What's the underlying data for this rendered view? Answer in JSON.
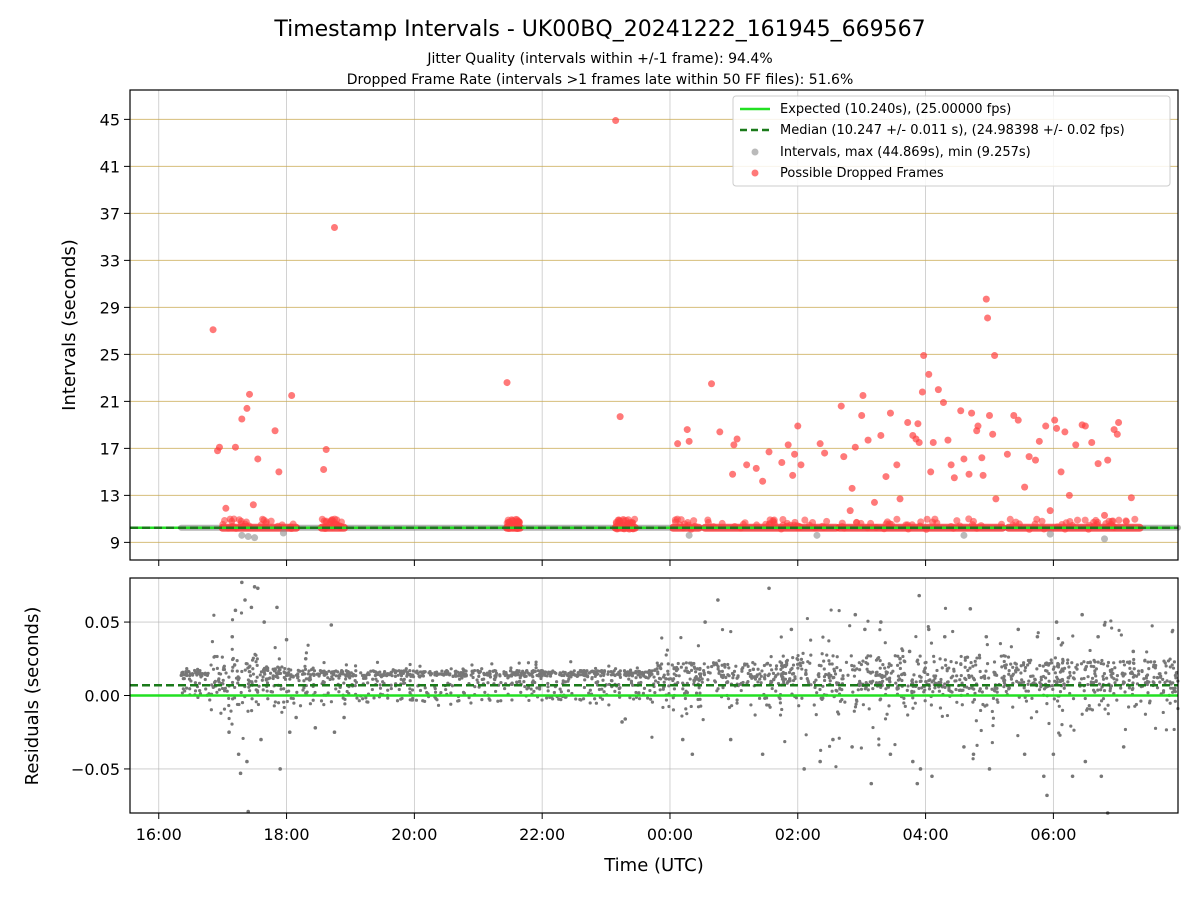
{
  "chart_data": [
    {
      "type": "scatter",
      "title": "Timestamp Intervals - UK00BQ_20241222_161945_669567",
      "subtitle_lines": [
        "Jitter Quality (intervals within +/-1 frame): 94.4%",
        "Dropped Frame Rate (intervals >1 frames late within 50 FF files): 51.6%"
      ],
      "xlabel": "",
      "ylabel": "Intervals (seconds)",
      "x_unit": "hours since 00:00 UTC (2024-12-23)",
      "xlim": [
        -8.45,
        7.95
      ],
      "ylim": [
        7.5,
        47.5
      ],
      "yticks": [
        9,
        13,
        17,
        21,
        25,
        29,
        33,
        37,
        41,
        45
      ],
      "ytick_labels": [
        "9",
        "13",
        "17",
        "21",
        "25",
        "29",
        "33",
        "37",
        "41",
        "45"
      ],
      "grid": true,
      "legend_position": "top-right",
      "legend": [
        {
          "label": "Expected (10.240s), (25.00000 fps)",
          "kind": "line",
          "color": "#22e022",
          "dash": "solid"
        },
        {
          "label": "Median (10.247 +/- 0.011 s), (24.98398 +/- 0.02 fps)",
          "kind": "line",
          "color": "#1a7a1a",
          "dash": "dashed"
        },
        {
          "label": "Intervals, max (44.869s), min (9.257s)",
          "kind": "point",
          "color": "#8c8c8c"
        },
        {
          "label": "Possible Dropped Frames",
          "kind": "point",
          "color": "#ff4040"
        }
      ],
      "expected_interval": 10.24,
      "median_interval": 10.247,
      "baseline_segments": [
        {
          "start": -7.65,
          "end": 7.95,
          "value": 10.24
        }
      ],
      "dense_dropped_segments": [
        [
          -7.0,
          -5.85
        ],
        [
          -5.45,
          -5.1
        ],
        [
          -2.55,
          -2.35
        ],
        [
          -0.85,
          -0.55
        ],
        [
          0.05,
          0.45
        ],
        [
          0.55,
          2.6
        ],
        [
          2.65,
          5.2
        ],
        [
          5.3,
          7.35
        ]
      ],
      "series": [
        {
          "name": "Possible Dropped Frames",
          "color": "#ff4040",
          "points": [
            [
              -7.15,
              27.1
            ],
            [
              -7.08,
              16.8
            ],
            [
              -7.05,
              17.1
            ],
            [
              -6.95,
              11.9
            ],
            [
              -6.8,
              17.1
            ],
            [
              -6.7,
              19.5
            ],
            [
              -6.62,
              20.4
            ],
            [
              -6.58,
              21.6
            ],
            [
              -6.52,
              12.2
            ],
            [
              -6.45,
              16.1
            ],
            [
              -6.18,
              18.5
            ],
            [
              -6.12,
              15.0
            ],
            [
              -5.92,
              21.5
            ],
            [
              -5.42,
              15.2
            ],
            [
              -5.38,
              16.9
            ],
            [
              -5.25,
              35.8
            ],
            [
              -2.55,
              22.6
            ],
            [
              -0.85,
              44.9
            ],
            [
              -0.78,
              19.7
            ],
            [
              0.12,
              17.4
            ],
            [
              0.27,
              18.6
            ],
            [
              0.3,
              17.6
            ],
            [
              0.65,
              22.5
            ],
            [
              0.78,
              18.4
            ],
            [
              0.98,
              14.8
            ],
            [
              1.0,
              17.3
            ],
            [
              1.05,
              17.8
            ],
            [
              1.2,
              15.6
            ],
            [
              1.35,
              15.3
            ],
            [
              1.45,
              14.2
            ],
            [
              1.55,
              16.7
            ],
            [
              1.75,
              15.8
            ],
            [
              1.85,
              17.3
            ],
            [
              1.92,
              14.7
            ],
            [
              1.95,
              16.5
            ],
            [
              2.0,
              18.9
            ],
            [
              2.05,
              15.6
            ],
            [
              2.35,
              17.4
            ],
            [
              2.42,
              16.6
            ],
            [
              2.68,
              20.6
            ],
            [
              2.72,
              16.3
            ],
            [
              2.82,
              11.7
            ],
            [
              2.85,
              13.6
            ],
            [
              2.9,
              17.1
            ],
            [
              3.0,
              19.8
            ],
            [
              3.02,
              21.5
            ],
            [
              3.1,
              17.7
            ],
            [
              3.2,
              12.4
            ],
            [
              3.3,
              18.1
            ],
            [
              3.38,
              14.6
            ],
            [
              3.45,
              20.0
            ],
            [
              3.55,
              15.6
            ],
            [
              3.6,
              12.7
            ],
            [
              3.72,
              19.2
            ],
            [
              3.8,
              18.1
            ],
            [
              3.85,
              17.8
            ],
            [
              3.88,
              19.1
            ],
            [
              3.9,
              17.5
            ],
            [
              3.95,
              21.8
            ],
            [
              3.97,
              24.9
            ],
            [
              4.05,
              23.3
            ],
            [
              4.08,
              15.0
            ],
            [
              4.12,
              17.5
            ],
            [
              4.2,
              22.0
            ],
            [
              4.28,
              20.9
            ],
            [
              4.35,
              17.7
            ],
            [
              4.4,
              15.6
            ],
            [
              4.45,
              14.5
            ],
            [
              4.55,
              20.2
            ],
            [
              4.6,
              16.1
            ],
            [
              4.68,
              14.8
            ],
            [
              4.72,
              20.0
            ],
            [
              4.8,
              18.5
            ],
            [
              4.82,
              18.9
            ],
            [
              4.88,
              16.2
            ],
            [
              4.9,
              14.7
            ],
            [
              4.95,
              29.7
            ],
            [
              4.97,
              28.1
            ],
            [
              5.0,
              19.8
            ],
            [
              5.05,
              18.2
            ],
            [
              5.08,
              24.9
            ],
            [
              5.1,
              12.7
            ],
            [
              5.28,
              16.5
            ],
            [
              5.38,
              19.8
            ],
            [
              5.45,
              19.4
            ],
            [
              5.55,
              13.7
            ],
            [
              5.62,
              16.3
            ],
            [
              5.72,
              16.0
            ],
            [
              5.78,
              17.6
            ],
            [
              5.88,
              18.9
            ],
            [
              5.95,
              11.7
            ],
            [
              6.02,
              19.4
            ],
            [
              6.05,
              18.7
            ],
            [
              6.12,
              15.0
            ],
            [
              6.18,
              18.4
            ],
            [
              6.25,
              13.0
            ],
            [
              6.35,
              17.3
            ],
            [
              6.45,
              19.0
            ],
            [
              6.5,
              18.9
            ],
            [
              6.6,
              17.5
            ],
            [
              6.7,
              15.7
            ],
            [
              6.8,
              11.3
            ],
            [
              6.85,
              16.0
            ],
            [
              6.95,
              18.6
            ],
            [
              7.0,
              18.2
            ],
            [
              7.02,
              19.2
            ],
            [
              7.22,
              12.8
            ]
          ]
        },
        {
          "name": "Intervals, max (44.869s), min (9.257s)",
          "color": "#8c8c8c",
          "points": [
            [
              -6.7,
              9.6
            ],
            [
              -6.6,
              9.5
            ],
            [
              -6.5,
              9.4
            ],
            [
              -6.05,
              9.8
            ],
            [
              0.3,
              9.6
            ],
            [
              2.3,
              9.6
            ],
            [
              4.6,
              9.6
            ],
            [
              5.95,
              9.7
            ],
            [
              6.8,
              9.3
            ]
          ]
        }
      ]
    },
    {
      "type": "scatter",
      "title": "",
      "xlabel": "Time (UTC)",
      "ylabel": "Residuals (seconds)",
      "x_unit": "hours since 00:00 UTC (2024-12-23)",
      "xlim": [
        -8.45,
        7.95
      ],
      "ylim": [
        -0.08,
        0.08
      ],
      "yticks": [
        -0.05,
        0,
        0.05
      ],
      "ytick_labels": [
        "−0.05",
        "0.00",
        "0.05"
      ],
      "xticks": [
        -8,
        -6,
        -4,
        -2,
        0,
        2,
        4,
        6
      ],
      "xtick_labels": [
        "16:00",
        "18:00",
        "20:00",
        "22:00",
        "00:00",
        "02:00",
        "04:00",
        "06:00"
      ],
      "grid": true,
      "expected_residual": 0.0,
      "median_residual": 0.007,
      "band_value": 0.015,
      "noise_regions": [
        {
          "start": -7.65,
          "end": -7.2,
          "spread": 0.006
        },
        {
          "start": -7.2,
          "end": -6.4,
          "spread": 0.05
        },
        {
          "start": -6.4,
          "end": -5.6,
          "spread": 0.02
        },
        {
          "start": -5.6,
          "end": -0.3,
          "spread": 0.008
        },
        {
          "start": -0.3,
          "end": 1.9,
          "spread": 0.03
        },
        {
          "start": 1.9,
          "end": 5.3,
          "spread": 0.05
        },
        {
          "start": 5.3,
          "end": 7.95,
          "spread": 0.04
        }
      ],
      "series": [
        {
          "name": "",
          "color": "#777777",
          "points": [
            [
              -7.35,
              0.015
            ],
            [
              -7.0,
              0.008
            ],
            [
              -6.9,
              -0.025
            ],
            [
              -6.85,
              0.04
            ],
            [
              -6.8,
              0.058
            ],
            [
              -6.75,
              -0.04
            ],
            [
              -6.72,
              -0.053
            ],
            [
              -6.7,
              0.077
            ],
            [
              -6.65,
              0.065
            ],
            [
              -6.62,
              -0.045
            ],
            [
              -6.6,
              -0.079
            ],
            [
              -6.55,
              0.06
            ],
            [
              -6.5,
              0.074
            ],
            [
              -6.45,
              0.073
            ],
            [
              -6.4,
              -0.03
            ],
            [
              -6.35,
              0.05
            ],
            [
              -6.15,
              0.06
            ],
            [
              -6.1,
              -0.05
            ],
            [
              -6.0,
              0.038
            ],
            [
              -5.95,
              -0.025
            ],
            [
              -5.85,
              -0.015
            ],
            [
              -5.7,
              0.025
            ],
            [
              -5.55,
              -0.022
            ],
            [
              -5.3,
              0.048
            ],
            [
              -5.25,
              -0.025
            ],
            [
              -5.1,
              -0.015
            ],
            [
              -0.75,
              -0.018
            ],
            [
              -0.7,
              -0.016
            ],
            [
              0.2,
              -0.03
            ],
            [
              0.35,
              -0.04
            ],
            [
              0.55,
              0.05
            ],
            [
              0.75,
              0.065
            ],
            [
              0.95,
              -0.03
            ],
            [
              1.45,
              -0.04
            ],
            [
              1.55,
              0.073
            ],
            [
              1.9,
              0.045
            ],
            [
              2.1,
              -0.05
            ],
            [
              2.35,
              -0.045
            ],
            [
              2.55,
              -0.03
            ],
            [
              2.85,
              -0.035
            ],
            [
              2.9,
              0.055
            ],
            [
              3.05,
              0.045
            ],
            [
              3.15,
              -0.06
            ],
            [
              3.3,
              0.05
            ],
            [
              3.45,
              -0.04
            ],
            [
              3.6,
              0.025
            ],
            [
              3.75,
              0.03
            ],
            [
              3.8,
              -0.045
            ],
            [
              3.87,
              -0.06
            ],
            [
              3.9,
              0.068
            ],
            [
              3.92,
              -0.05
            ],
            [
              4.05,
              0.045
            ],
            [
              4.1,
              -0.055
            ],
            [
              4.3,
              0.04
            ],
            [
              4.6,
              -0.035
            ],
            [
              4.7,
              0.059
            ],
            [
              4.75,
              -0.04
            ],
            [
              4.95,
              0.04
            ],
            [
              5.0,
              -0.05
            ],
            [
              5.45,
              0.045
            ],
            [
              5.55,
              -0.04
            ],
            [
              5.75,
              0.04
            ],
            [
              5.85,
              -0.055
            ],
            [
              5.9,
              -0.068
            ],
            [
              6.0,
              -0.04
            ],
            [
              6.05,
              0.05
            ],
            [
              6.3,
              -0.055
            ],
            [
              6.45,
              0.055
            ],
            [
              6.5,
              -0.045
            ],
            [
              6.7,
              0.04
            ],
            [
              6.75,
              -0.055
            ],
            [
              6.8,
              0.048
            ],
            [
              6.85,
              -0.08
            ],
            [
              7.1,
              -0.035
            ],
            [
              7.25,
              0.03
            ]
          ]
        }
      ]
    }
  ]
}
